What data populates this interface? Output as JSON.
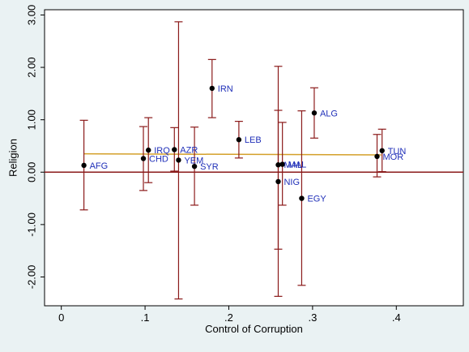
{
  "chart_data": {
    "type": "scatter",
    "xlabel": "Control of Corruption",
    "ylabel": "Religion",
    "xlim": [
      -0.02,
      0.48
    ],
    "ylim": [
      -2.55,
      3.1
    ],
    "x_ticks": [
      {
        "value": 0,
        "label": "0"
      },
      {
        "value": 0.1,
        "label": ".1"
      },
      {
        "value": 0.2,
        "label": ".2"
      },
      {
        "value": 0.3,
        "label": ".3"
      },
      {
        "value": 0.4,
        "label": ".4"
      }
    ],
    "y_ticks": [
      {
        "value": -2,
        "label": "-2.00"
      },
      {
        "value": -1,
        "label": "-1.00"
      },
      {
        "value": 0,
        "label": "0.00"
      },
      {
        "value": 1,
        "label": "1.00"
      },
      {
        "value": 2,
        "label": "2.00"
      },
      {
        "value": 3,
        "label": "3.00"
      }
    ],
    "grid": false,
    "reference_line": {
      "y": 0,
      "color": "#8b1a1a"
    },
    "fit_line": {
      "x": [
        0.027,
        0.382
      ],
      "y": [
        0.35,
        0.33
      ],
      "color": "#d4a02a"
    },
    "points": [
      {
        "label": "AFG",
        "x": 0.027,
        "y": 0.13,
        "low": -0.72,
        "high": 0.99
      },
      {
        "label": "IRQ",
        "x": 0.104,
        "y": 0.42,
        "low": -0.2,
        "high": 1.04
      },
      {
        "label": "CHD",
        "x": 0.098,
        "y": 0.26,
        "low": -0.35,
        "high": 0.87
      },
      {
        "label": "AZR",
        "x": 0.135,
        "y": 0.43,
        "low": 0.02,
        "high": 0.85
      },
      {
        "label": "YEM",
        "x": 0.14,
        "y": 0.23,
        "low": -2.42,
        "high": 2.87
      },
      {
        "label": "SYR",
        "x": 0.159,
        "y": 0.11,
        "low": -0.63,
        "high": 0.86
      },
      {
        "label": "IRN",
        "x": 0.18,
        "y": 1.6,
        "low": 1.04,
        "high": 2.15
      },
      {
        "label": "LEB",
        "x": 0.212,
        "y": 0.62,
        "low": 0.27,
        "high": 0.97
      },
      {
        "label": "MAL",
        "x": 0.259,
        "y": 0.14,
        "low": -2.37,
        "high": 2.02
      },
      {
        "label": "NIG",
        "x": 0.259,
        "y": -0.18,
        "low": -1.47,
        "high": 1.18
      },
      {
        "label": "MAL",
        "x": 0.264,
        "y": 0.15,
        "low": -0.63,
        "high": 0.95
      },
      {
        "label": "EGY",
        "x": 0.287,
        "y": -0.5,
        "low": -2.16,
        "high": 1.17
      },
      {
        "label": "ALG",
        "x": 0.302,
        "y": 1.13,
        "low": 0.65,
        "high": 1.61
      },
      {
        "label": "MOR",
        "x": 0.377,
        "y": 0.3,
        "low": -0.09,
        "high": 0.72
      },
      {
        "label": "TUN",
        "x": 0.383,
        "y": 0.41,
        "low": 0.01,
        "high": 0.82
      }
    ],
    "colors": {
      "error_bar": "#8b1a1a",
      "marker": "#000000",
      "label": "#1f2fb8",
      "plot_bg": "#ffffff",
      "page_bg": "#eaf2f3"
    }
  }
}
